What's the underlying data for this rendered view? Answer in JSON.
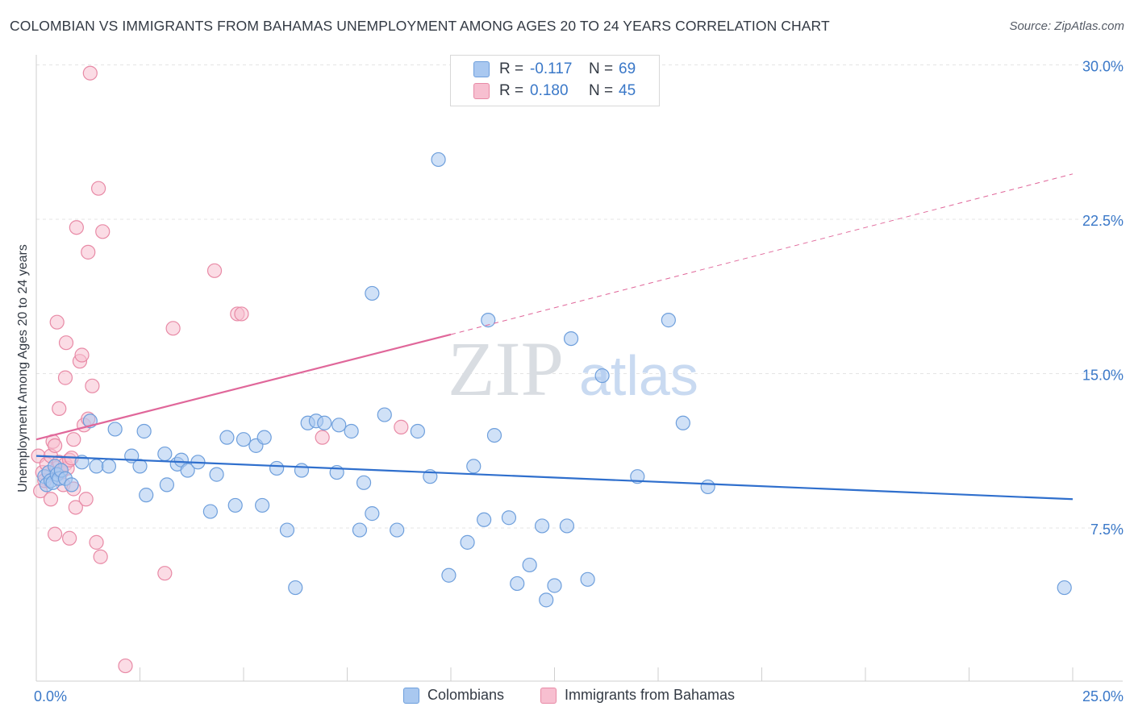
{
  "title": "COLOMBIAN VS IMMIGRANTS FROM BAHAMAS UNEMPLOYMENT AMONG AGES 20 TO 24 YEARS CORRELATION CHART",
  "source": "Source: ZipAtlas.com",
  "watermark": {
    "zip": "ZIP",
    "atlas": "atlas"
  },
  "legend": {
    "r_label": "R =",
    "n_label": "N =",
    "rows": [
      {
        "series": "Colombians",
        "r": "-0.117",
        "n": "69"
      },
      {
        "series": "Immigrants from Bahamas",
        "r": "0.180",
        "n": "45"
      }
    ]
  },
  "colors": {
    "blue_fill": "#a9c8f0",
    "blue_stroke": "#6e9fdc",
    "blue_line": "#2f6fcd",
    "pink_fill": "#f7bfd0",
    "pink_stroke": "#e88aa6",
    "pink_line": "#e0679a",
    "tick_label": "#3a78c8",
    "grid": "#e4e4e4"
  },
  "chart_data": {
    "type": "scatter",
    "title": "COLOMBIAN VS IMMIGRANTS FROM BAHAMAS UNEMPLOYMENT AMONG AGES 20 TO 24 YEARS CORRELATION CHART",
    "xlabel": "",
    "ylabel": "Unemployment Among Ages 20 to 24 years",
    "xlim": [
      0,
      25
    ],
    "ylim": [
      0,
      31
    ],
    "x_tick_labels": [
      "0.0%",
      "25.0%"
    ],
    "y_ticks": [
      7.5,
      15.0,
      22.5,
      30.0
    ],
    "y_tick_labels": [
      "7.5%",
      "15.0%",
      "22.5%",
      "30.0%"
    ],
    "grid": "horizontal dashed",
    "legend_position": "top-center",
    "series": [
      {
        "name": "Colombians",
        "r": -0.117,
        "n": 69,
        "trend": {
          "x": [
            0,
            25
          ],
          "y": [
            11.0,
            8.9
          ]
        },
        "points": [
          [
            0.2,
            10.0
          ],
          [
            0.25,
            9.6
          ],
          [
            0.3,
            10.2
          ],
          [
            0.35,
            9.8
          ],
          [
            0.4,
            9.7
          ],
          [
            0.45,
            10.5
          ],
          [
            0.5,
            10.1
          ],
          [
            0.55,
            9.9
          ],
          [
            0.6,
            10.3
          ],
          [
            0.7,
            9.9
          ],
          [
            0.85,
            9.6
          ],
          [
            1.1,
            10.7
          ],
          [
            1.3,
            12.7
          ],
          [
            1.45,
            10.5
          ],
          [
            1.75,
            10.5
          ],
          [
            1.9,
            12.3
          ],
          [
            2.3,
            11.0
          ],
          [
            2.5,
            10.5
          ],
          [
            2.6,
            12.2
          ],
          [
            2.65,
            9.1
          ],
          [
            3.1,
            11.1
          ],
          [
            3.15,
            9.6
          ],
          [
            3.4,
            10.6
          ],
          [
            3.5,
            10.8
          ],
          [
            3.65,
            10.3
          ],
          [
            3.9,
            10.7
          ],
          [
            4.2,
            8.3
          ],
          [
            4.35,
            10.1
          ],
          [
            4.6,
            11.9
          ],
          [
            4.8,
            8.6
          ],
          [
            5.0,
            11.8
          ],
          [
            5.3,
            11.5
          ],
          [
            5.45,
            8.6
          ],
          [
            5.5,
            11.9
          ],
          [
            5.8,
            10.4
          ],
          [
            6.05,
            7.4
          ],
          [
            6.25,
            4.6
          ],
          [
            6.4,
            10.3
          ],
          [
            6.55,
            12.6
          ],
          [
            6.75,
            12.7
          ],
          [
            6.95,
            12.6
          ],
          [
            7.3,
            12.5
          ],
          [
            7.25,
            10.2
          ],
          [
            7.6,
            12.2
          ],
          [
            7.8,
            7.4
          ],
          [
            7.9,
            9.7
          ],
          [
            8.1,
            8.2
          ],
          [
            8.1,
            18.9
          ],
          [
            8.4,
            13.0
          ],
          [
            8.7,
            7.4
          ],
          [
            9.2,
            12.2
          ],
          [
            9.5,
            10.0
          ],
          [
            9.7,
            25.4
          ],
          [
            9.95,
            5.2
          ],
          [
            10.4,
            6.8
          ],
          [
            10.55,
            10.5
          ],
          [
            10.8,
            7.9
          ],
          [
            10.9,
            17.6
          ],
          [
            11.05,
            12.0
          ],
          [
            11.4,
            8.0
          ],
          [
            11.6,
            4.8
          ],
          [
            11.9,
            5.7
          ],
          [
            12.2,
            7.6
          ],
          [
            12.3,
            4.0
          ],
          [
            12.5,
            4.7
          ],
          [
            12.8,
            7.6
          ],
          [
            12.9,
            16.7
          ],
          [
            13.3,
            5.0
          ],
          [
            13.65,
            14.9
          ],
          [
            14.5,
            10.0
          ],
          [
            15.25,
            17.6
          ],
          [
            15.6,
            12.6
          ],
          [
            16.2,
            9.5
          ],
          [
            24.8,
            4.6
          ]
        ]
      },
      {
        "name": "Immigrants from Bahamas",
        "r": 0.18,
        "n": 45,
        "trend": {
          "x": [
            0,
            10
          ],
          "y": [
            11.8,
            16.9
          ]
        },
        "trend_extension": {
          "x": [
            10,
            25
          ],
          "y": [
            16.9,
            24.7
          ]
        },
        "points": [
          [
            0.05,
            11.0
          ],
          [
            0.1,
            9.3
          ],
          [
            0.15,
            10.2
          ],
          [
            0.2,
            9.8
          ],
          [
            0.25,
            10.6
          ],
          [
            0.3,
            10.2
          ],
          [
            0.35,
            11.0
          ],
          [
            0.4,
            11.7
          ],
          [
            0.45,
            11.5
          ],
          [
            0.5,
            10.4
          ],
          [
            0.55,
            10.7
          ],
          [
            0.6,
            10.2
          ],
          [
            0.65,
            9.6
          ],
          [
            0.7,
            10.6
          ],
          [
            0.75,
            10.4
          ],
          [
            0.8,
            10.8
          ],
          [
            0.85,
            10.9
          ],
          [
            0.9,
            9.4
          ],
          [
            0.35,
            8.9
          ],
          [
            0.45,
            7.2
          ],
          [
            0.5,
            17.5
          ],
          [
            0.55,
            13.3
          ],
          [
            0.7,
            14.8
          ],
          [
            0.72,
            16.5
          ],
          [
            0.8,
            7.0
          ],
          [
            0.9,
            11.8
          ],
          [
            0.95,
            8.5
          ],
          [
            1.05,
            15.6
          ],
          [
            1.1,
            15.9
          ],
          [
            1.15,
            12.5
          ],
          [
            1.2,
            8.9
          ],
          [
            1.25,
            12.8
          ],
          [
            1.35,
            14.4
          ],
          [
            1.45,
            6.8
          ],
          [
            1.5,
            24.0
          ],
          [
            1.55,
            6.1
          ],
          [
            1.6,
            21.9
          ],
          [
            1.25,
            20.9
          ],
          [
            0.97,
            22.1
          ],
          [
            1.3,
            29.6
          ],
          [
            2.15,
            0.8
          ],
          [
            3.1,
            5.3
          ],
          [
            3.3,
            17.2
          ],
          [
            4.3,
            20.0
          ],
          [
            4.85,
            17.9
          ],
          [
            4.95,
            17.9
          ],
          [
            6.9,
            11.9
          ],
          [
            8.8,
            12.4
          ]
        ]
      }
    ]
  }
}
